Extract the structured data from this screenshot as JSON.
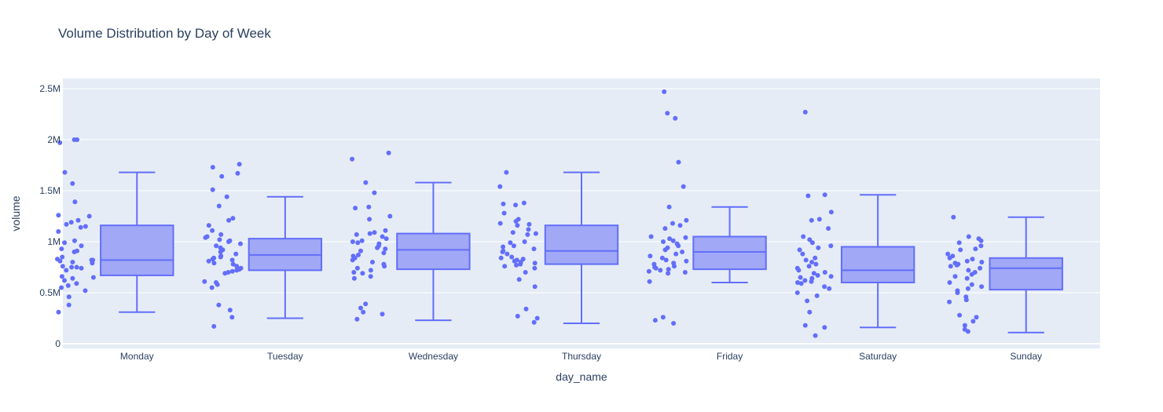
{
  "chart_data": {
    "type": "box",
    "title": "Volume Distribution by Day of Week",
    "xlabel": "day_name",
    "ylabel": "volume",
    "ylim": [
      -50000,
      2600000
    ],
    "y_ticks": [
      0,
      500000,
      1000000,
      1500000,
      2000000,
      2500000
    ],
    "y_tick_labels": [
      "0",
      "0.5M",
      "1M",
      "1.5M",
      "2M",
      "2.5M"
    ],
    "grid": true,
    "colors": {
      "accent": "#636efa",
      "box_fill": "#a1a8f5",
      "plot_bg": "#e5ecf6",
      "grid": "#ffffff",
      "text": "#2a3f5f"
    },
    "categories": [
      "Monday",
      "Tuesday",
      "Wednesday",
      "Thursday",
      "Friday",
      "Saturday",
      "Sunday"
    ],
    "boxes": [
      {
        "category": "Monday",
        "lower_whisker": 310000,
        "q1": 670000,
        "median": 820000,
        "q3": 1160000,
        "upper_whisker": 1680000,
        "points": [
          2000000,
          2000000,
          1970000,
          1680000,
          1570000,
          1390000,
          1260000,
          1250000,
          1210000,
          1190000,
          1170000,
          1150000,
          1140000,
          1100000,
          1010000,
          990000,
          960000,
          930000,
          910000,
          900000,
          850000,
          830000,
          820000,
          820000,
          810000,
          800000,
          790000,
          760000,
          750000,
          750000,
          740000,
          720000,
          660000,
          650000,
          640000,
          620000,
          590000,
          570000,
          550000,
          520000,
          460000,
          380000,
          310000
        ]
      },
      {
        "category": "Tuesday",
        "lower_whisker": 250000,
        "q1": 720000,
        "median": 870000,
        "q3": 1030000,
        "upper_whisker": 1440000,
        "points": [
          1760000,
          1730000,
          1670000,
          1640000,
          1510000,
          1440000,
          1350000,
          1230000,
          1210000,
          1160000,
          1110000,
          1070000,
          1050000,
          1040000,
          1020000,
          1010000,
          1000000,
          980000,
          960000,
          940000,
          920000,
          900000,
          880000,
          860000,
          850000,
          840000,
          830000,
          820000,
          810000,
          790000,
          780000,
          760000,
          740000,
          730000,
          720000,
          710000,
          700000,
          690000,
          610000,
          600000,
          580000,
          550000,
          380000,
          330000,
          260000,
          170000
        ]
      },
      {
        "category": "Wednesday",
        "lower_whisker": 230000,
        "q1": 730000,
        "median": 920000,
        "q3": 1080000,
        "upper_whisker": 1580000,
        "points": [
          1870000,
          1810000,
          1580000,
          1480000,
          1340000,
          1330000,
          1250000,
          1220000,
          1110000,
          1090000,
          1080000,
          1070000,
          1050000,
          1030000,
          1010000,
          1000000,
          990000,
          980000,
          960000,
          940000,
          930000,
          910000,
          890000,
          870000,
          860000,
          840000,
          820000,
          800000,
          780000,
          760000,
          740000,
          720000,
          700000,
          690000,
          660000,
          640000,
          390000,
          350000,
          310000,
          290000,
          240000
        ]
      },
      {
        "category": "Thursday",
        "lower_whisker": 200000,
        "q1": 780000,
        "median": 910000,
        "q3": 1160000,
        "upper_whisker": 1680000,
        "points": [
          1680000,
          1540000,
          1380000,
          1370000,
          1360000,
          1280000,
          1220000,
          1200000,
          1180000,
          1170000,
          1160000,
          1120000,
          1090000,
          1080000,
          1070000,
          1000000,
          990000,
          960000,
          950000,
          930000,
          910000,
          900000,
          880000,
          850000,
          840000,
          830000,
          820000,
          810000,
          800000,
          790000,
          780000,
          770000,
          760000,
          740000,
          700000,
          630000,
          560000,
          340000,
          270000,
          250000,
          210000
        ]
      },
      {
        "category": "Friday",
        "lower_whisker": 600000,
        "q1": 730000,
        "median": 900000,
        "q3": 1050000,
        "upper_whisker": 1340000,
        "points": [
          2470000,
          2260000,
          2210000,
          1780000,
          1540000,
          1340000,
          1210000,
          1180000,
          1160000,
          1130000,
          1050000,
          1040000,
          1030000,
          1010000,
          1000000,
          980000,
          960000,
          940000,
          920000,
          900000,
          880000,
          860000,
          840000,
          820000,
          810000,
          790000,
          780000,
          760000,
          750000,
          740000,
          730000,
          720000,
          710000,
          700000,
          690000,
          610000,
          260000,
          230000,
          200000
        ]
      },
      {
        "category": "Saturday",
        "lower_whisker": 160000,
        "q1": 600000,
        "median": 720000,
        "q3": 950000,
        "upper_whisker": 1460000,
        "points": [
          2270000,
          1460000,
          1450000,
          1290000,
          1220000,
          1210000,
          1130000,
          1050000,
          1020000,
          990000,
          960000,
          940000,
          920000,
          880000,
          840000,
          820000,
          800000,
          780000,
          760000,
          740000,
          720000,
          700000,
          690000,
          670000,
          660000,
          650000,
          640000,
          620000,
          610000,
          600000,
          590000,
          560000,
          540000,
          500000,
          470000,
          420000,
          310000,
          180000,
          160000,
          80000
        ]
      },
      {
        "category": "Sunday",
        "lower_whisker": 110000,
        "q1": 530000,
        "median": 740000,
        "q3": 840000,
        "upper_whisker": 1240000,
        "points": [
          1240000,
          1050000,
          1030000,
          1010000,
          990000,
          960000,
          930000,
          920000,
          880000,
          860000,
          840000,
          830000,
          810000,
          800000,
          790000,
          780000,
          770000,
          760000,
          740000,
          720000,
          700000,
          680000,
          660000,
          640000,
          600000,
          580000,
          560000,
          540000,
          520000,
          500000,
          460000,
          430000,
          410000,
          280000,
          260000,
          220000,
          180000,
          140000,
          120000
        ]
      }
    ]
  }
}
